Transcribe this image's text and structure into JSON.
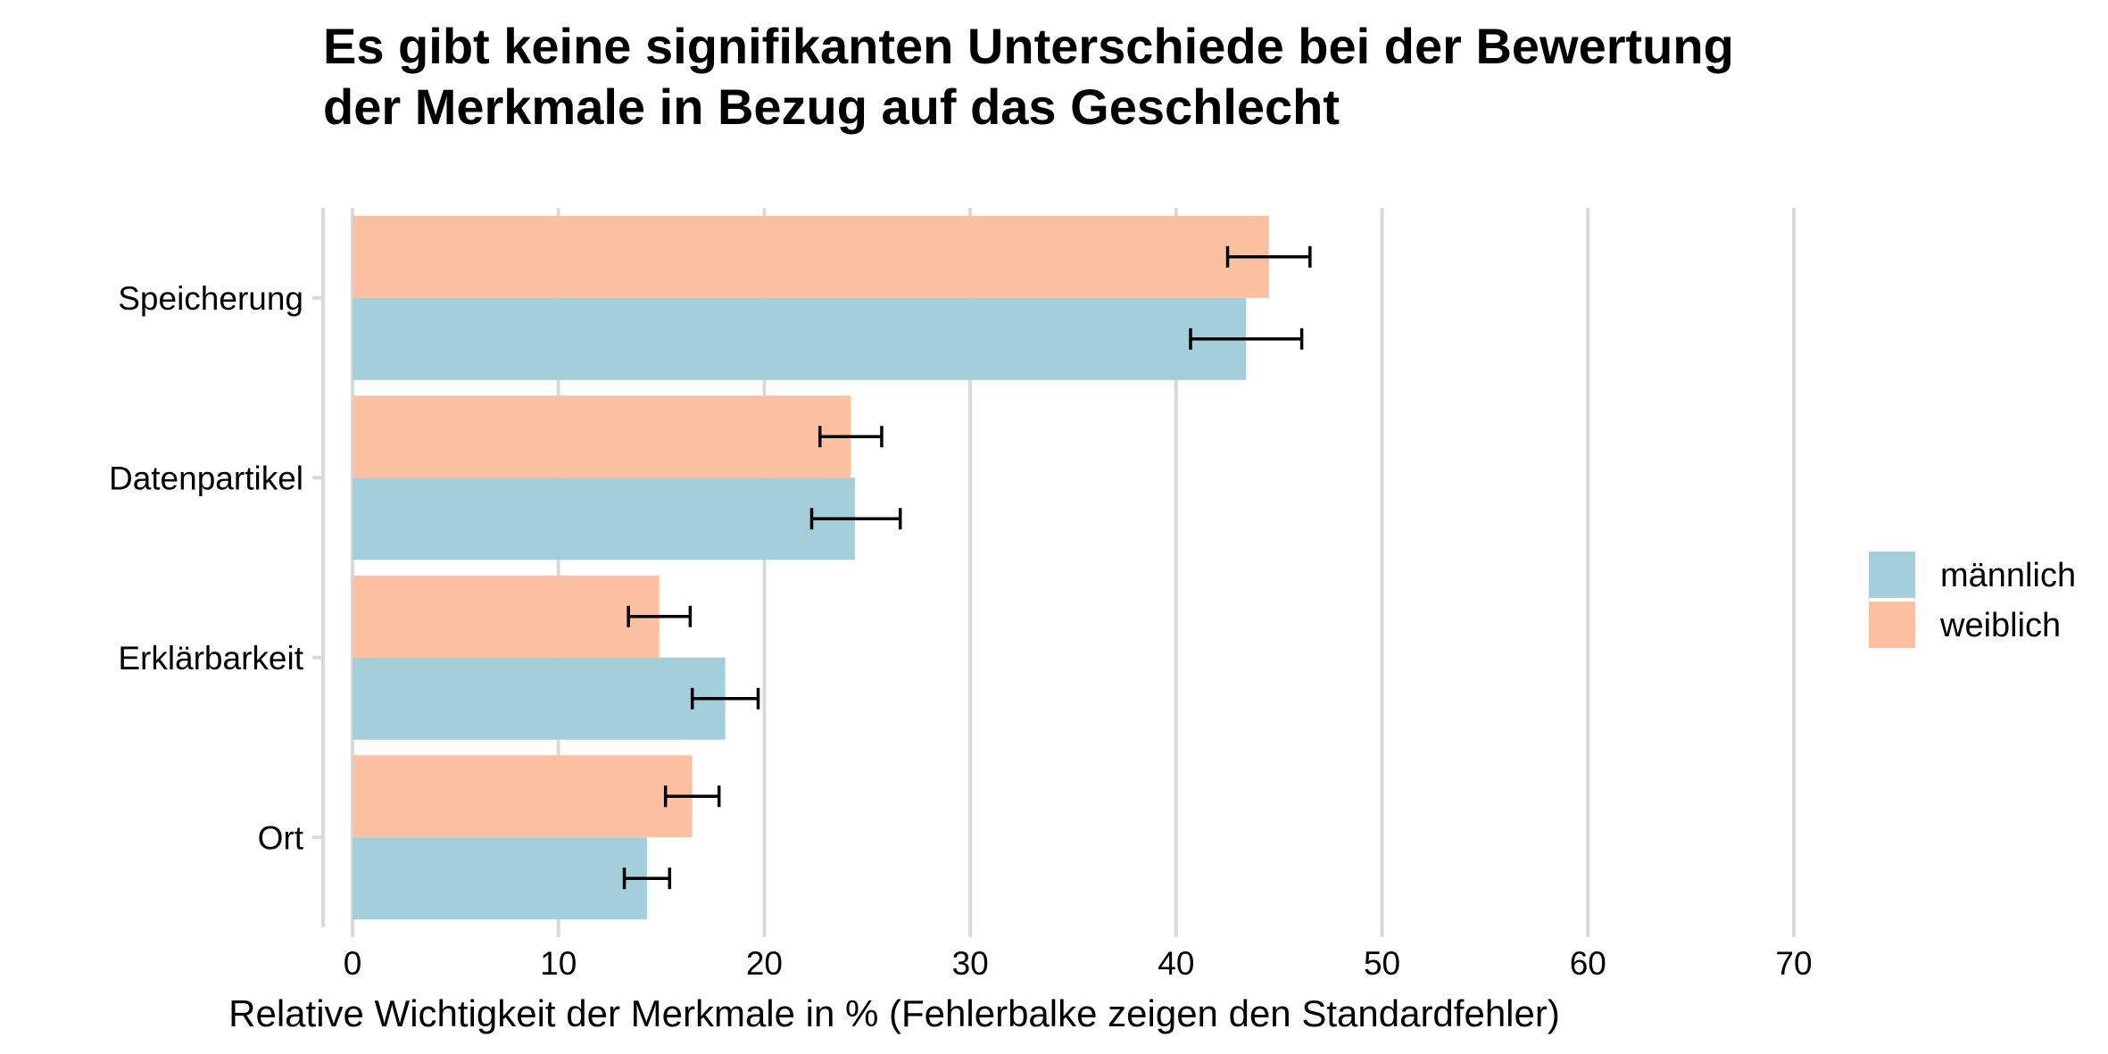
{
  "chart_data": {
    "type": "bar",
    "orientation": "horizontal",
    "title": "Es gibt keine signifikanten Unterschiede bei der Bewertung\nder Merkmale in Bezug auf das Geschlecht",
    "xlabel": "Relative Wichtigkeit der Merkmale in % (Fehlerbalke zeigen den Standardfehler)",
    "ylabel": "",
    "xlim": [
      0,
      70
    ],
    "x_ticks": [
      0,
      10,
      20,
      30,
      40,
      50,
      60,
      70
    ],
    "categories": [
      "Speicherung",
      "Datenpartikel",
      "Erklärbarkeit",
      "Ort"
    ],
    "series": [
      {
        "name": "weiblich",
        "color": "#FDC1A1",
        "values": [
          44.5,
          24.2,
          14.9,
          16.5
        ],
        "error_low": [
          42.5,
          22.7,
          13.4,
          15.2
        ],
        "error_high": [
          46.5,
          25.7,
          16.4,
          17.8
        ]
      },
      {
        "name": "männlich",
        "color": "#A2CFD9",
        "values": [
          43.4,
          24.4,
          18.1,
          14.3
        ],
        "error_low": [
          40.7,
          22.3,
          16.5,
          13.2
        ],
        "error_high": [
          46.1,
          26.6,
          19.7,
          15.4
        ]
      }
    ],
    "legend": {
      "placement": "right",
      "entries": [
        {
          "label": "männlich",
          "color": "#A2CFD9"
        },
        {
          "label": "weiblich",
          "color": "#FDC1A1"
        }
      ]
    },
    "grid": {
      "vertical": true,
      "horizontal": false,
      "color": "#D9D9D9"
    }
  }
}
